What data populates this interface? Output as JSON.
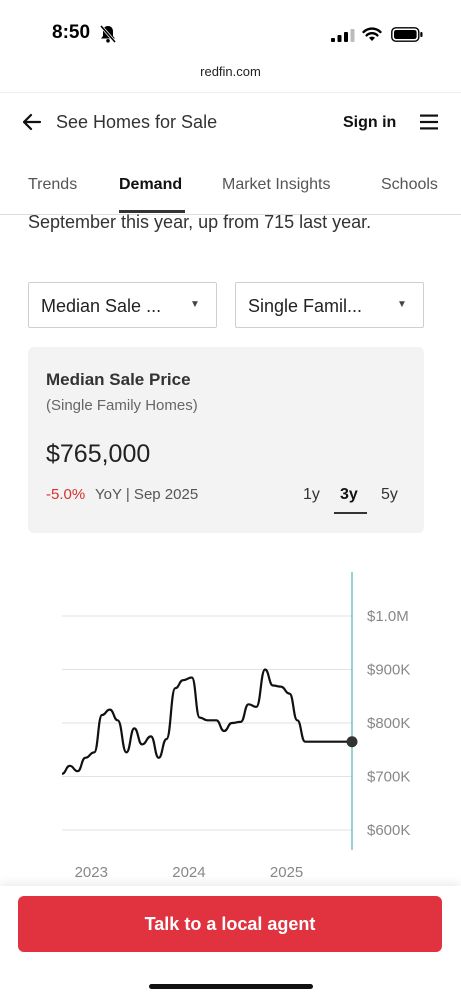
{
  "status_bar": {
    "time": "8:50"
  },
  "browser": {
    "url": "redfin.com"
  },
  "header": {
    "back_label": "See Homes for Sale",
    "signin_label": "Sign in"
  },
  "tabs": [
    {
      "label": "Trends",
      "active": false
    },
    {
      "label": "Demand",
      "active": true
    },
    {
      "label": "Market Insights",
      "active": false
    },
    {
      "label": "Schools",
      "active": false
    }
  ],
  "intro_text": "September this year, up from 715 last year.",
  "filters": {
    "metric": "Median Sale ...",
    "home_type": "Single Famil..."
  },
  "card": {
    "title": "Median Sale Price",
    "subtitle": "(Single Family Homes)",
    "value": "$765,000",
    "yoy_change": "-5.0%",
    "yoy_label": "YoY | Sep 2025",
    "ranges": [
      {
        "label": "1y",
        "active": false
      },
      {
        "label": "3y",
        "active": true
      },
      {
        "label": "5y",
        "active": false
      }
    ]
  },
  "colors": {
    "accent": "#e0323f",
    "negative": "#d0342c",
    "cursor_line": "#4fb3c2",
    "line": "#111111"
  },
  "cta": {
    "label": "Talk to a local agent"
  },
  "chart_data": {
    "type": "line",
    "y_tick_labels": [
      "$1.0M",
      "$900K",
      "$800K",
      "$700K",
      "$600K"
    ],
    "ylim": [
      560000,
      1040000
    ],
    "x_tick_labels": [
      "2023",
      "2024",
      "2025"
    ],
    "x_tick_values": [
      2023.0,
      2024.0,
      2025.0
    ],
    "xlim": [
      2022.7,
      2025.67
    ],
    "grid": true,
    "series": [
      {
        "x": [
          2022.7,
          2022.78,
          2022.86,
          2022.94,
          2023.03,
          2023.11,
          2023.19,
          2023.27,
          2023.36,
          2023.44,
          2023.52,
          2023.61,
          2023.69,
          2023.77,
          2023.86,
          2023.94,
          2024.03,
          2024.11,
          2024.19,
          2024.28,
          2024.36,
          2024.44,
          2024.53,
          2024.61,
          2024.69,
          2024.78,
          2024.86,
          2024.94,
          2025.03,
          2025.11,
          2025.19,
          2025.28,
          2025.36,
          2025.44,
          2025.52,
          2025.61,
          2025.67
        ],
        "y": [
          705000,
          720000,
          710000,
          735000,
          745000,
          815000,
          825000,
          805000,
          745000,
          790000,
          760000,
          775000,
          735000,
          770000,
          865000,
          880000,
          885000,
          810000,
          805000,
          805000,
          785000,
          800000,
          802000,
          835000,
          830000,
          900000,
          870000,
          868000,
          855000,
          805000,
          765000,
          765000,
          765000,
          765000,
          765000,
          765000,
          765000
        ],
        "current_value": 765000
      }
    ]
  }
}
